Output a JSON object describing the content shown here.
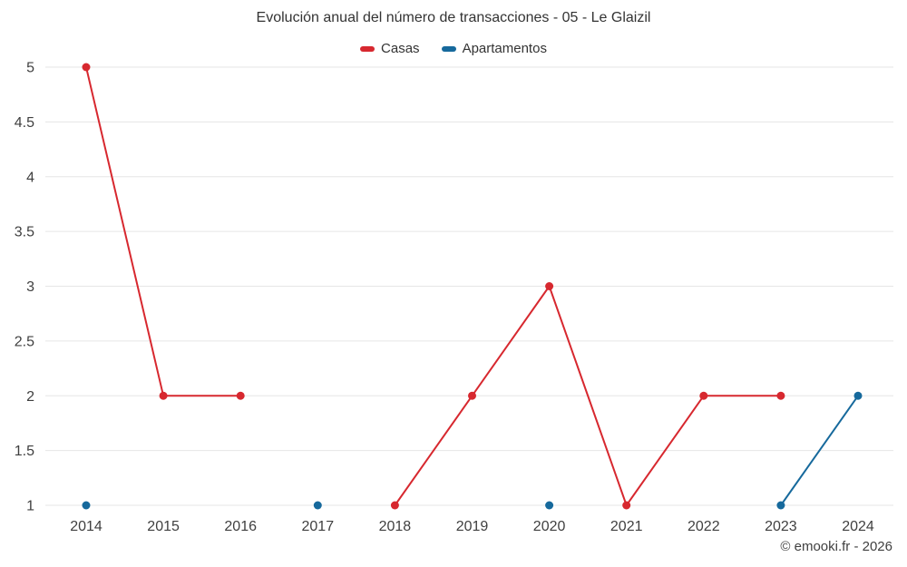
{
  "title": "Evolución anual del número de transacciones - 05 - Le Glaizil",
  "legend": [
    {
      "label": "Casas",
      "color": "#d7282f"
    },
    {
      "label": "Apartamentos",
      "color": "#16699c"
    }
  ],
  "footer": "© emooki.fr - 2026",
  "chart_data": {
    "type": "line",
    "title": "Evolución anual del número de transacciones - 05 - Le Glaizil",
    "categories": [
      "2014",
      "2015",
      "2016",
      "2017",
      "2018",
      "2019",
      "2020",
      "2021",
      "2022",
      "2023",
      "2024"
    ],
    "series": [
      {
        "name": "Casas",
        "color": "#d7282f",
        "values": [
          5,
          2,
          2,
          null,
          1,
          2,
          3,
          1,
          2,
          2,
          null
        ]
      },
      {
        "name": "Apartamentos",
        "color": "#16699c",
        "values": [
          1,
          null,
          null,
          1,
          null,
          null,
          1,
          null,
          null,
          1,
          2
        ]
      }
    ],
    "xlabel": "",
    "ylabel": "",
    "ylim": [
      1,
      5
    ],
    "ytick_step": 0.5,
    "grid": true,
    "legend_position": "top"
  }
}
